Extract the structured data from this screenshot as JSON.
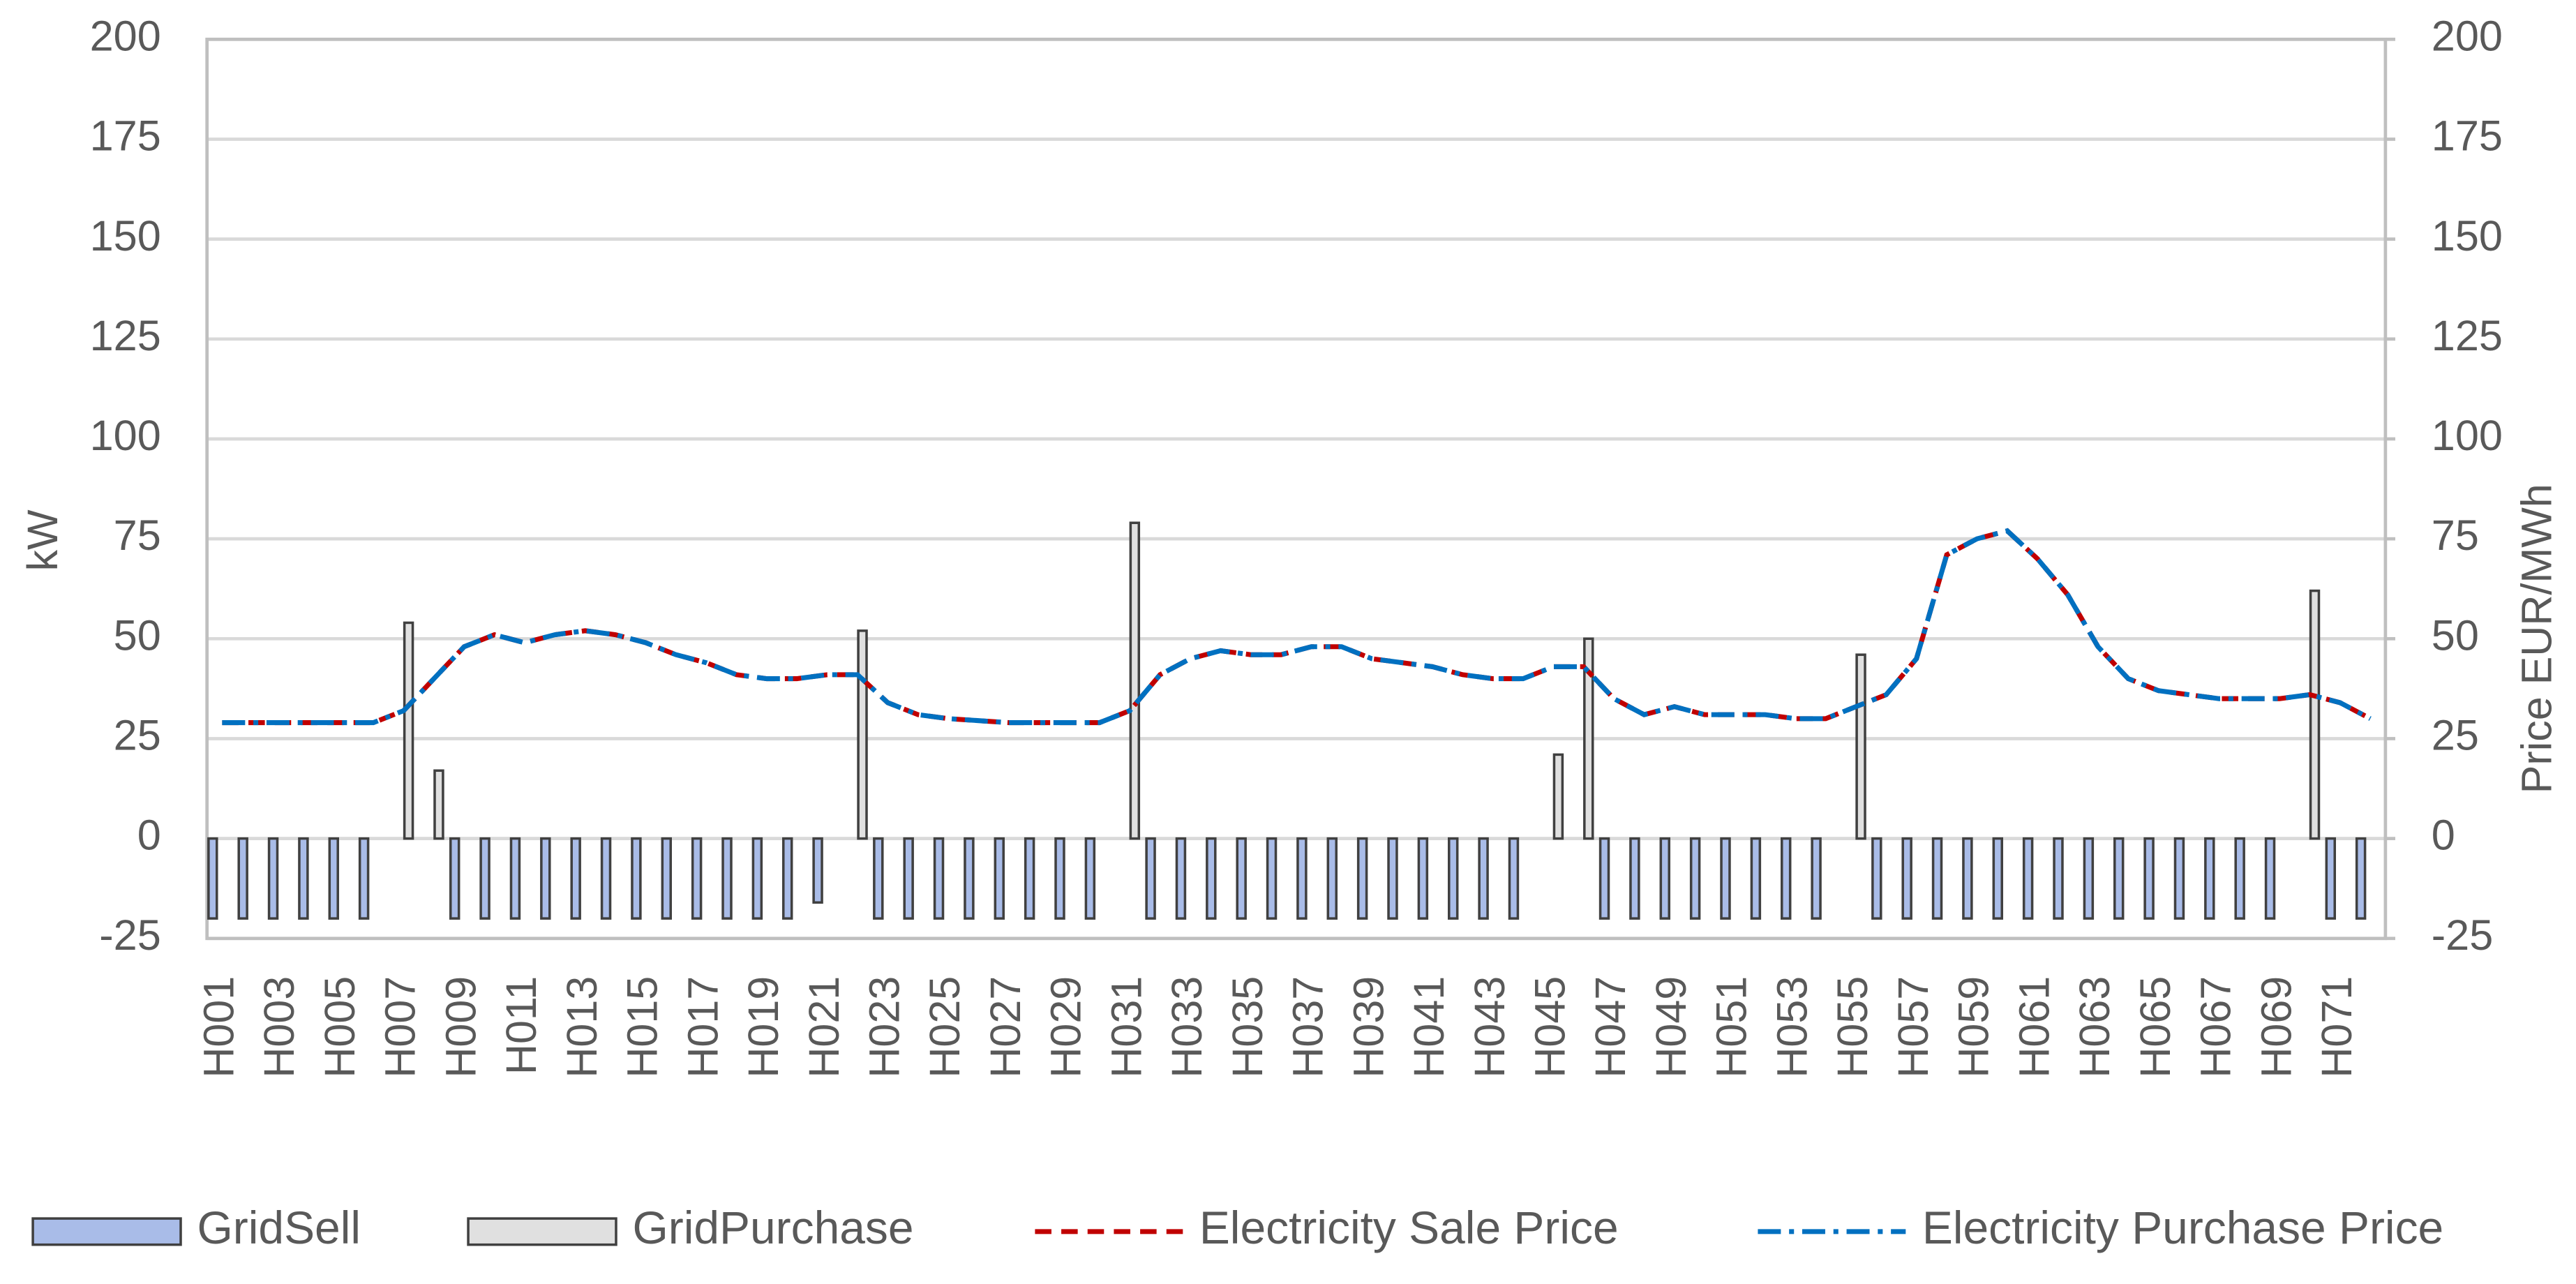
{
  "chart_data": {
    "type": "bar",
    "categories": [
      "H001",
      null,
      "H003",
      null,
      "H005",
      null,
      "H007",
      null,
      "H009",
      null,
      "H011",
      null,
      "H013",
      null,
      "H015",
      null,
      "H017",
      null,
      "H019",
      null,
      "H021",
      null,
      "H023",
      null,
      "H025",
      null,
      "H027",
      null,
      "H029",
      null,
      "H031",
      null,
      "H033",
      null,
      "H035",
      null,
      "H037",
      null,
      "H039",
      null,
      "H041",
      null,
      "H043",
      null,
      "H045",
      null,
      "H047",
      null,
      "H049",
      null,
      "H051",
      null,
      "H053",
      null,
      "H055",
      null,
      "H057",
      null,
      "H059",
      null,
      "H061",
      null,
      "H063",
      null,
      "H065",
      null,
      "H067",
      null,
      "H069",
      null,
      "H071",
      null
    ],
    "ylabel": "kW",
    "y2label": "Price EUR/MWh",
    "ylim": [
      -25,
      200
    ],
    "yticks": [
      -25,
      0,
      25,
      50,
      75,
      100,
      125,
      150,
      175,
      200
    ],
    "y2lim": [
      -25,
      200
    ],
    "y2ticks": [
      -25,
      0,
      25,
      50,
      75,
      100,
      125,
      150,
      175,
      200
    ],
    "grid": true,
    "legend": "bottom",
    "series": [
      {
        "name": "GridSell",
        "type": "bar",
        "color": "#a9bce8",
        "values": [
          -20,
          -20,
          -20,
          -20,
          -20,
          -20,
          0,
          0,
          -20,
          -20,
          -20,
          -20,
          -20,
          -20,
          -20,
          -20,
          -20,
          -20,
          -20,
          -20,
          -16,
          0,
          -20,
          -20,
          -20,
          -20,
          -20,
          -20,
          -20,
          -20,
          0,
          -20,
          -20,
          -20,
          -20,
          -20,
          -20,
          -20,
          -20,
          -20,
          -20,
          -20,
          -20,
          -20,
          0,
          0,
          -20,
          -20,
          -20,
          -20,
          -20,
          -20,
          -20,
          -20,
          0,
          -20,
          -20,
          -20,
          -20,
          -20,
          -20,
          -20,
          -20,
          -20,
          -20,
          -20,
          -20,
          -20,
          -20,
          0,
          -20,
          -20
        ]
      },
      {
        "name": "GridPurchase",
        "type": "bar",
        "color": "#e0e0e0",
        "values": [
          0,
          0,
          0,
          0,
          0,
          0,
          54,
          17,
          0,
          0,
          0,
          0,
          0,
          0,
          0,
          0,
          0,
          0,
          0,
          0,
          0,
          52,
          0,
          0,
          0,
          0,
          0,
          0,
          0,
          0,
          79,
          0,
          0,
          0,
          0,
          0,
          0,
          0,
          0,
          0,
          0,
          0,
          0,
          0,
          21,
          50,
          0,
          0,
          0,
          0,
          0,
          0,
          0,
          0,
          46,
          0,
          0,
          0,
          0,
          0,
          0,
          0,
          0,
          0,
          0,
          0,
          0,
          0,
          0,
          62,
          0,
          0
        ]
      },
      {
        "name": "Electricity Sale Price",
        "type": "line",
        "axis": "y2",
        "color": "#c00000",
        "dash": "dash",
        "values": [
          29,
          29,
          29,
          29,
          29,
          29,
          32,
          40,
          48,
          51,
          49,
          51,
          52,
          51,
          49,
          46,
          44,
          41,
          40,
          40,
          41,
          41,
          34,
          31,
          30,
          29.5,
          29,
          29,
          29,
          29,
          32,
          41,
          45,
          47,
          46,
          46,
          48,
          48,
          45,
          44,
          43,
          41,
          40,
          40,
          43,
          43,
          35,
          31,
          33,
          31,
          31,
          31,
          30,
          30,
          33,
          36,
          45,
          71,
          75,
          77,
          70,
          61,
          48,
          40,
          37,
          36,
          35,
          35,
          35,
          36,
          34,
          30
        ]
      },
      {
        "name": "Electricity Purchase Price",
        "type": "line",
        "axis": "y2",
        "color": "#0070c0",
        "dash": "dashdot",
        "values": [
          29,
          29,
          29,
          29,
          29,
          29,
          32,
          40,
          48,
          51,
          49,
          51,
          52,
          51,
          49,
          46,
          44,
          41,
          40,
          40,
          41,
          41,
          34,
          31,
          30,
          29.5,
          29,
          29,
          29,
          29,
          32,
          41,
          45,
          47,
          46,
          46,
          48,
          48,
          45,
          44,
          43,
          41,
          40,
          40,
          43,
          43,
          35,
          31,
          33,
          31,
          31,
          31,
          30,
          30,
          33,
          36,
          45,
          71,
          75,
          77,
          70,
          61,
          48,
          40,
          37,
          36,
          35,
          35,
          35,
          36,
          34,
          30
        ]
      }
    ]
  }
}
